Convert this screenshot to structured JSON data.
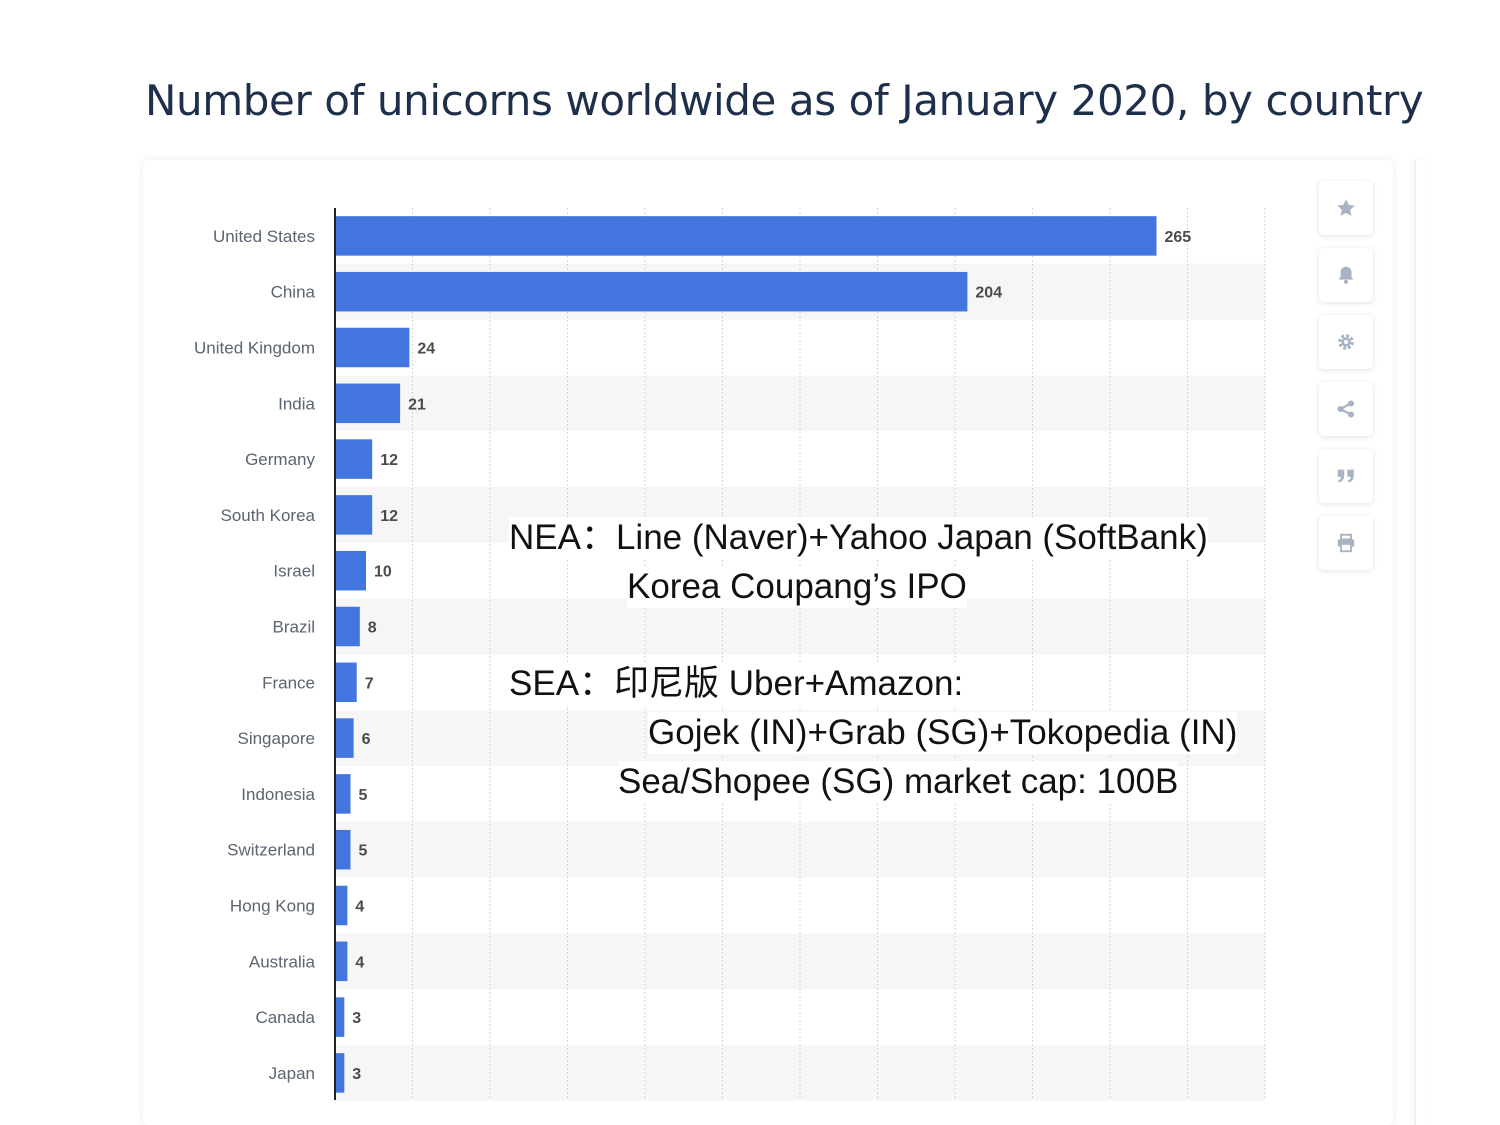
{
  "chart_data": {
    "type": "bar",
    "orientation": "horizontal",
    "title": "Number of unicorns worldwide as of January 2020, by country",
    "categories": [
      "United States",
      "China",
      "United Kingdom",
      "India",
      "Germany",
      "South Korea",
      "Israel",
      "Brazil",
      "France",
      "Singapore",
      "Indonesia",
      "Switzerland",
      "Hong Kong",
      "Australia",
      "Canada",
      "Japan"
    ],
    "values": [
      265,
      204,
      24,
      21,
      12,
      12,
      10,
      8,
      7,
      6,
      5,
      5,
      4,
      4,
      3,
      3
    ],
    "data_labels": [
      "265",
      "204",
      "24",
      "21",
      "12",
      "12",
      "10",
      "8",
      "7",
      "6",
      "5",
      "5",
      "4",
      "4",
      "3",
      "3"
    ],
    "xlim": [
      0,
      300
    ],
    "grid": "vertical dotted",
    "bar_color": "#4275de"
  },
  "annotations": {
    "nea_line1": "NEA：Line (Naver)+Yahoo Japan (SoftBank)",
    "nea_line2": "Korea Coupang’s IPO",
    "sea_line1": "SEA：印尼版 Uber+Amazon:",
    "sea_line2": "Gojek (IN)+Grab (SG)+Tokopedia (IN)",
    "sea_line3": "Sea/Shopee (SG) market cap: 100B"
  },
  "toolbar": {
    "icons": [
      "star-icon",
      "bell-icon",
      "gear-icon",
      "share-icon",
      "quote-icon",
      "print-icon"
    ],
    "icon_color": "#a8b4c3"
  }
}
